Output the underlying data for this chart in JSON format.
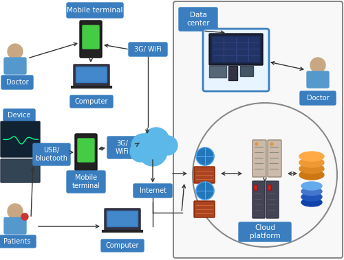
{
  "bg_color": "#ffffff",
  "box_color": "#3a7ebf",
  "box_text_color": "#ffffff",
  "cloud_color": "#5bb8e8",
  "arrow_color": "#333333",
  "labels": {
    "mobile_terminal_top": "Mobile terminal",
    "doctor_left": "Doctor",
    "computer_top": "Computer",
    "three_g_wifi_right": "3G/ WiFi",
    "device": "Device",
    "usb_bluetooth": "USB/\nbluetooth",
    "three_g_wifi_mid": "3G/\nWiFi",
    "mobile_terminal_mid": "Mobile\nterminal",
    "internet": "Internet",
    "patients": "Patients",
    "computer_bot": "Computer",
    "data_center": "Data\ncenter",
    "doctor_right": "Doctor",
    "cloud_platform": "Cloud\nplatform"
  },
  "figsize": [
    5.0,
    3.79
  ],
  "dpi": 100
}
